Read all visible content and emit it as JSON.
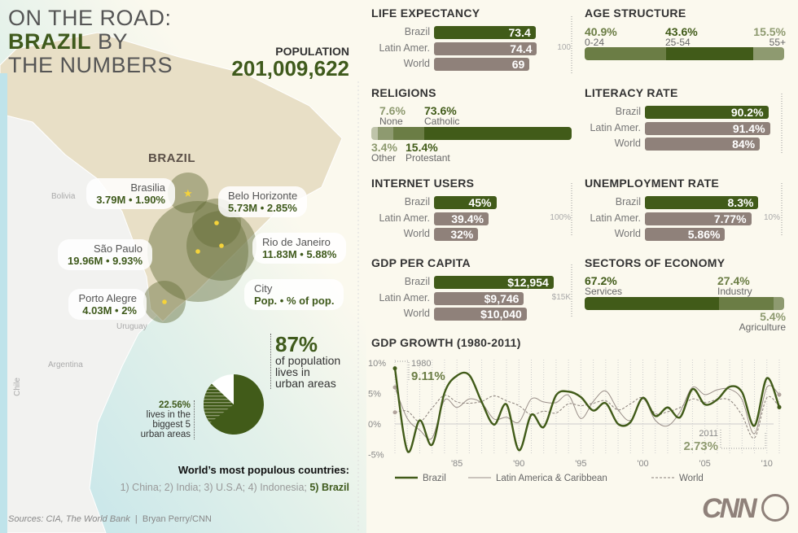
{
  "header": {
    "line1": "ON THE ROAD:",
    "brazil": "BRAZIL",
    "by": " BY",
    "line3": "THE NUMBERS",
    "population_label": "POPULATION",
    "population_value": "201,009,622"
  },
  "map": {
    "country": "BRAZIL",
    "neighbors": [
      "Bolivia",
      "Uruguay",
      "Argentina",
      "Chile"
    ],
    "cities": [
      {
        "name": "Brasilia",
        "stats": "3.79M • 1.90%",
        "capital": true
      },
      {
        "name": "Belo Horizonte",
        "stats": "5.73M • 2.85%"
      },
      {
        "name": "São Paulo",
        "stats": "19.96M • 9.93%"
      },
      {
        "name": "Rio de Janeiro",
        "stats": "11.83M • 5.88%"
      },
      {
        "name": "Porto Alegre",
        "stats": "4.03M • 2%"
      }
    ],
    "legend": {
      "city": "City",
      "stats": "Pop. • % of pop."
    }
  },
  "urban": {
    "pct": "87%",
    "text1": "of population",
    "text2": "lives in",
    "text3": "urban areas",
    "big5_pct": "22.56%",
    "big5_1": "lives in the",
    "big5_2": "biggest 5",
    "big5_3": "urban areas",
    "urban_value": 87,
    "big5_value": 22.56
  },
  "populous": {
    "title": "World’s most populous countries:",
    "list": "1) China; 2) India; 3) U.S.A; 4) Indonesia; ",
    "brazil": "5) Brazil"
  },
  "footer": {
    "sources": "Sources: CIA, The World Bank",
    "credit": "Bryan Perry/CNN",
    "logo": "CNN"
  },
  "colors": {
    "brazil": "#415b19",
    "other": "#8f817a",
    "light_green": "#6b7d45",
    "pale_green": "#8e9a70"
  },
  "chart_data": [
    {
      "type": "bar",
      "title": "LIFE EXPECTANCY",
      "categories": [
        "Brazil",
        "Latin Amer.",
        "World"
      ],
      "values": [
        73.4,
        74.4,
        69
      ],
      "labels": [
        "73.4",
        "74.4",
        "69"
      ],
      "scale_max": 100,
      "scale_label": "100"
    },
    {
      "type": "bar",
      "title": "LITERACY RATE",
      "categories": [
        "Brazil",
        "Latin Amer.",
        "World"
      ],
      "values": [
        90.2,
        91.4,
        84
      ],
      "labels": [
        "90.2%",
        "91.4%",
        "84%"
      ],
      "scale_max": 100,
      "scale_label": ""
    },
    {
      "type": "bar",
      "title": "INTERNET USERS",
      "categories": [
        "Brazil",
        "Latin Amer.",
        "World"
      ],
      "values": [
        45,
        39.4,
        32
      ],
      "labels": [
        "45%",
        "39.4%",
        "32%"
      ],
      "scale_max": 100,
      "scale_label": "100%"
    },
    {
      "type": "bar",
      "title": "UNEMPLOYMENT RATE",
      "categories": [
        "Brazil",
        "Latin Amer.",
        "World"
      ],
      "values": [
        8.3,
        7.77,
        5.86
      ],
      "labels": [
        "8.3%",
        "7.77%",
        "5.86%"
      ],
      "scale_max": 10,
      "scale_label": "10%"
    },
    {
      "type": "bar",
      "title": "GDP PER CAPITA",
      "categories": [
        "Brazil",
        "Latin Amer.",
        "World"
      ],
      "values": [
        12954,
        9746,
        10040
      ],
      "labels": [
        "$12,954",
        "$9,746",
        "$10,040"
      ],
      "scale_max": 15000,
      "scale_label": "$15K"
    },
    {
      "type": "stacked-bar",
      "title": "AGE STRUCTURE",
      "segments": [
        {
          "label": "0-24",
          "value": 40.9,
          "text": "40.9%"
        },
        {
          "label": "25-54",
          "value": 43.6,
          "text": "43.6%"
        },
        {
          "label": "55+",
          "value": 15.5,
          "text": "15.5%"
        }
      ]
    },
    {
      "type": "stacked-bar",
      "title": "RELIGIONS",
      "segments": [
        {
          "label": "Other",
          "value": 3.4,
          "text": "3.4%"
        },
        {
          "label": "None",
          "value": 7.6,
          "text": "7.6%"
        },
        {
          "label": "Protestant",
          "value": 15.4,
          "text": "15.4%"
        },
        {
          "label": "Catholic",
          "value": 73.6,
          "text": "73.6%"
        }
      ]
    },
    {
      "type": "stacked-bar",
      "title": "SECTORS OF ECONOMY",
      "segments": [
        {
          "label": "Services",
          "value": 67.2,
          "text": "67.2%"
        },
        {
          "label": "Industry",
          "value": 27.4,
          "text": "27.4%"
        },
        {
          "label": "Agriculture",
          "value": 5.4,
          "text": "5.4%"
        }
      ]
    },
    {
      "type": "pie",
      "title": "",
      "slices": [
        {
          "label": "urban areas",
          "value": 87
        },
        {
          "label": "biggest 5 urban areas",
          "value": 22.56
        }
      ]
    },
    {
      "type": "line",
      "title": "GDP GROWTH (1980-2011)",
      "ylim": [
        -5,
        10
      ],
      "yticks": [
        "10%",
        "5%",
        "0%",
        "-5%"
      ],
      "ytick_values": [
        10,
        5,
        0,
        -5
      ],
      "xticks": [
        "'85",
        "'90",
        "'95",
        "'00",
        "'05",
        "'10"
      ],
      "xtick_values": [
        1985,
        1990,
        1995,
        2000,
        2005,
        2010
      ],
      "x": [
        1980,
        1981,
        1982,
        1983,
        1984,
        1985,
        1986,
        1987,
        1988,
        1989,
        1990,
        1991,
        1992,
        1993,
        1994,
        1995,
        1996,
        1997,
        1998,
        1999,
        2000,
        2001,
        2002,
        2003,
        2004,
        2005,
        2006,
        2007,
        2008,
        2009,
        2010,
        2011
      ],
      "series": [
        {
          "name": "Brazil",
          "values": [
            9.11,
            -4.4,
            0.6,
            -3.4,
            5.1,
            7.9,
            8.0,
            3.6,
            -0.1,
            3.2,
            -4.3,
            1.5,
            -0.5,
            4.7,
            5.3,
            4.4,
            2.2,
            3.4,
            0.0,
            0.3,
            4.3,
            1.3,
            2.7,
            1.1,
            5.7,
            3.2,
            4.0,
            6.1,
            5.2,
            -0.3,
            7.5,
            2.73
          ]
        },
        {
          "name": "Latin America & Caribbean",
          "values": [
            6.0,
            0.9,
            -1.0,
            -2.3,
            3.9,
            2.7,
            4.1,
            3.4,
            0.8,
            1.1,
            0.3,
            4.1,
            3.6,
            3.5,
            4.7,
            0.9,
            3.7,
            5.4,
            2.3,
            0.6,
            4.1,
            0.6,
            -0.3,
            2.0,
            6.0,
            4.8,
            5.6,
            5.7,
            4.0,
            -1.6,
            6.0,
            4.8
          ]
        },
        {
          "name": "World",
          "values": [
            1.9,
            2.1,
            0.4,
            2.6,
            4.7,
            3.6,
            3.4,
            3.7,
            4.6,
            3.8,
            3.0,
            1.5,
            2.1,
            1.8,
            3.3,
            3.0,
            3.4,
            3.8,
            2.3,
            3.3,
            4.3,
            1.7,
            2.0,
            2.7,
            4.1,
            3.5,
            4.0,
            3.9,
            1.4,
            -2.3,
            4.3,
            2.8
          ]
        }
      ],
      "annotations": [
        {
          "year": "1980",
          "value": "9.11%"
        },
        {
          "year": "2011",
          "value": "2.73%"
        }
      ]
    }
  ]
}
